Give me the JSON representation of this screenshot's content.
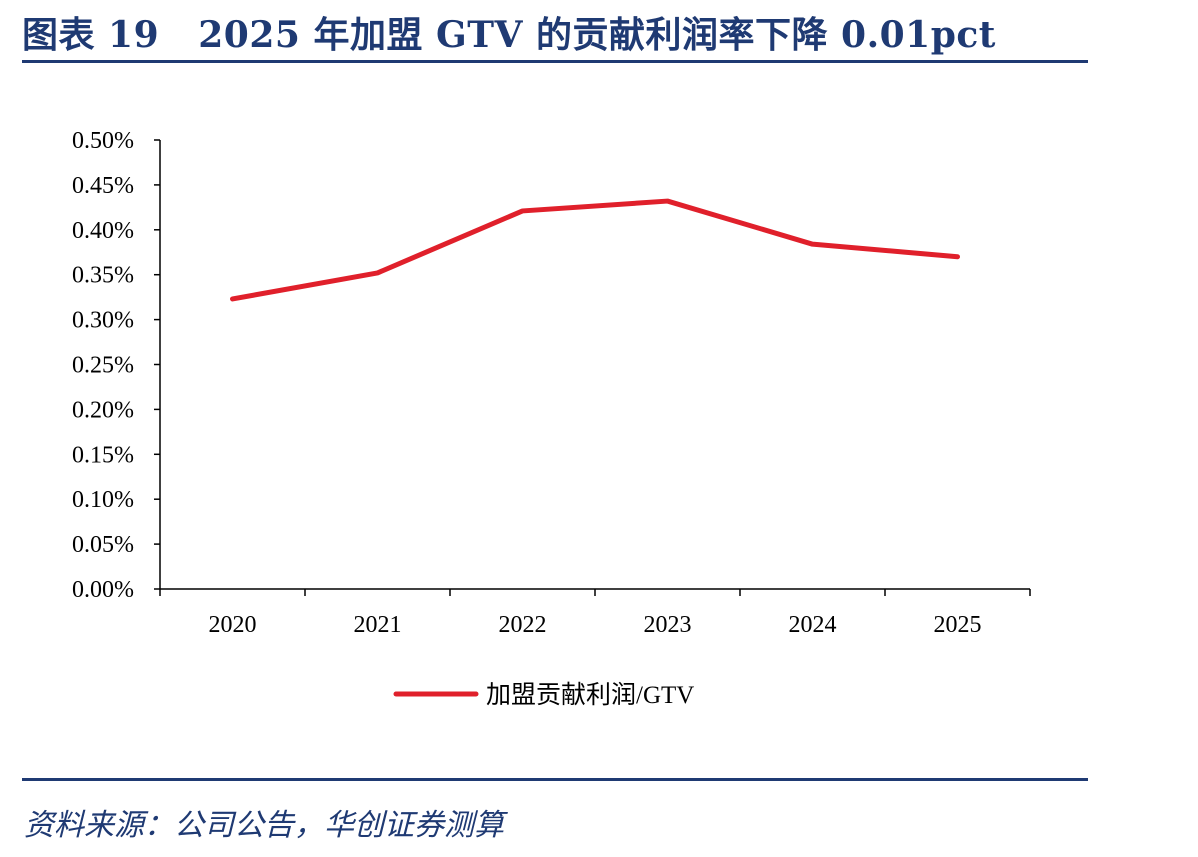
{
  "figure": {
    "title": "图表 19   2025 年加盟 GTV 的贡献利润率下降 0.01pct",
    "source": "资料来源：公司公告，华创证券测算"
  },
  "colors": {
    "accent": "#1f3a73",
    "series": "#e0202b",
    "axis": "#000000"
  },
  "chart_data": {
    "type": "line",
    "categories": [
      "2020",
      "2021",
      "2022",
      "2023",
      "2024",
      "2025"
    ],
    "series": [
      {
        "name": "加盟贡献利润/GTV",
        "values": [
          0.323,
          0.352,
          0.421,
          0.432,
          0.384,
          0.37
        ]
      }
    ],
    "ylim": [
      0,
      0.5
    ],
    "yticks": [
      0.0,
      0.05,
      0.1,
      0.15,
      0.2,
      0.25,
      0.3,
      0.35,
      0.4,
      0.45,
      0.5
    ],
    "ytick_labels": [
      "0.00%",
      "0.05%",
      "0.10%",
      "0.15%",
      "0.20%",
      "0.25%",
      "0.30%",
      "0.35%",
      "0.40%",
      "0.45%",
      "0.50%"
    ],
    "y_unit": "%",
    "grid": false,
    "legend": "bottom-center"
  }
}
